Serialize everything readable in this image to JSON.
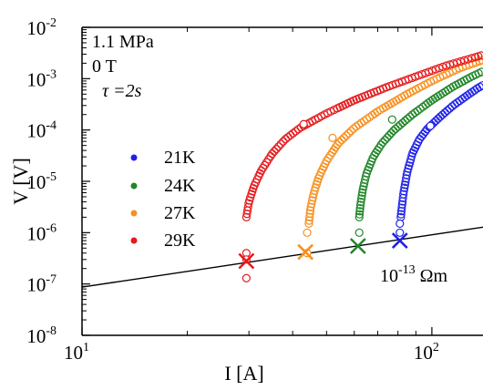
{
  "chart_data": {
    "type": "scatter",
    "title": "",
    "xlabel": "I [A]",
    "ylabel": "V [V]",
    "xscale": "log",
    "yscale": "log",
    "xlim": [
      10,
      140
    ],
    "ylim": [
      1e-08,
      0.01
    ],
    "x_ticks": [
      {
        "value": 10,
        "base": "10",
        "exp": "1"
      },
      {
        "value": 100,
        "base": "10",
        "exp": "2"
      }
    ],
    "y_ticks": [
      {
        "value": 1e-08,
        "base": "10",
        "exp": "-8"
      },
      {
        "value": 1e-07,
        "base": "10",
        "exp": "-7"
      },
      {
        "value": 1e-06,
        "base": "10",
        "exp": "-6"
      },
      {
        "value": 1e-05,
        "base": "10",
        "exp": "-5"
      },
      {
        "value": 0.0001,
        "base": "10",
        "exp": "-4"
      },
      {
        "value": 0.001,
        "base": "10",
        "exp": "-3"
      },
      {
        "value": 0.01,
        "base": "10",
        "exp": "-2"
      }
    ],
    "conditions": [
      "1.1 MPa",
      "0 T",
      "τ =2s"
    ],
    "criterion_line": {
      "label_base": "10",
      "label_exp": "-13",
      "label_unit": "Ωm",
      "x": [
        10,
        140
      ],
      "y": [
        8.7e-08,
        1.28e-06
      ]
    },
    "legend_position": "left",
    "series": [
      {
        "name": "21K",
        "color": "#1f22e6",
        "onset_x": 81.5,
        "curve": [
          [
            81.5,
            2e-06
          ],
          [
            82,
            3e-06
          ],
          [
            83,
            6e-06
          ],
          [
            85,
            1.5e-05
          ],
          [
            88,
            3.5e-05
          ],
          [
            92,
            6.5e-05
          ],
          [
            97,
            0.000105
          ],
          [
            105,
            0.000175
          ],
          [
            115,
            0.0003
          ],
          [
            125,
            0.00045
          ],
          [
            135,
            0.00065
          ],
          [
            140,
            0.00075
          ]
        ],
        "sparse_points": [
          [
            81,
            1e-06
          ],
          [
            81,
            1.5e-06
          ],
          [
            99,
            0.00012
          ]
        ],
        "cross": [
          81,
          7e-07
        ]
      },
      {
        "name": "24K",
        "color": "#22862a",
        "onset_x": 62,
        "curve": [
          [
            62,
            2e-06
          ],
          [
            62.5,
            3.5e-06
          ],
          [
            63.5,
            7e-06
          ],
          [
            65,
            1.4e-05
          ],
          [
            68,
            3e-05
          ],
          [
            72,
            5.5e-05
          ],
          [
            78,
            0.0001
          ],
          [
            88,
            0.0002
          ],
          [
            100,
            0.00038
          ],
          [
            115,
            0.0007
          ],
          [
            130,
            0.0011
          ],
          [
            140,
            0.0014
          ]
        ],
        "sparse_points": [
          [
            62,
            1e-06
          ],
          [
            77,
            0.00016
          ]
        ],
        "cross": [
          61.5,
          5.5e-07
        ]
      },
      {
        "name": "27K",
        "color": "#f7901e",
        "onset_x": 44.5,
        "curve": [
          [
            44.5,
            1.5e-06
          ],
          [
            45,
            3e-06
          ],
          [
            46,
            6e-06
          ],
          [
            47.5,
            1.2e-05
          ],
          [
            50,
            2.5e-05
          ],
          [
            54,
            5.5e-05
          ],
          [
            60,
            0.00011
          ],
          [
            70,
            0.00023
          ],
          [
            85,
            0.0005
          ],
          [
            100,
            0.0009
          ],
          [
            120,
            0.0016
          ],
          [
            140,
            0.0023
          ]
        ],
        "sparse_points": [
          [
            44,
            4e-07
          ],
          [
            44,
            1e-06
          ],
          [
            52,
            7e-05
          ]
        ],
        "cross": [
          43.5,
          4.2e-07
        ]
      },
      {
        "name": "29K",
        "color": "#e41a1c",
        "onset_x": 29.5,
        "curve": [
          [
            29.5,
            2e-06
          ],
          [
            30,
            4e-06
          ],
          [
            31,
            8e-06
          ],
          [
            32.5,
            1.6e-05
          ],
          [
            35,
            3.5e-05
          ],
          [
            38,
            6.5e-05
          ],
          [
            42,
            0.00011
          ],
          [
            50,
            0.00021
          ],
          [
            60,
            0.00038
          ],
          [
            75,
            0.0007
          ],
          [
            90,
            0.0011
          ],
          [
            110,
            0.0018
          ],
          [
            140,
            0.0029
          ]
        ],
        "sparse_points": [
          [
            29.5,
            4e-07
          ],
          [
            29.5,
            1.3e-07
          ],
          [
            29.5,
            3e-07
          ],
          [
            43,
            0.00013
          ]
        ],
        "cross": [
          29.5,
          2.8e-07
        ]
      }
    ]
  }
}
